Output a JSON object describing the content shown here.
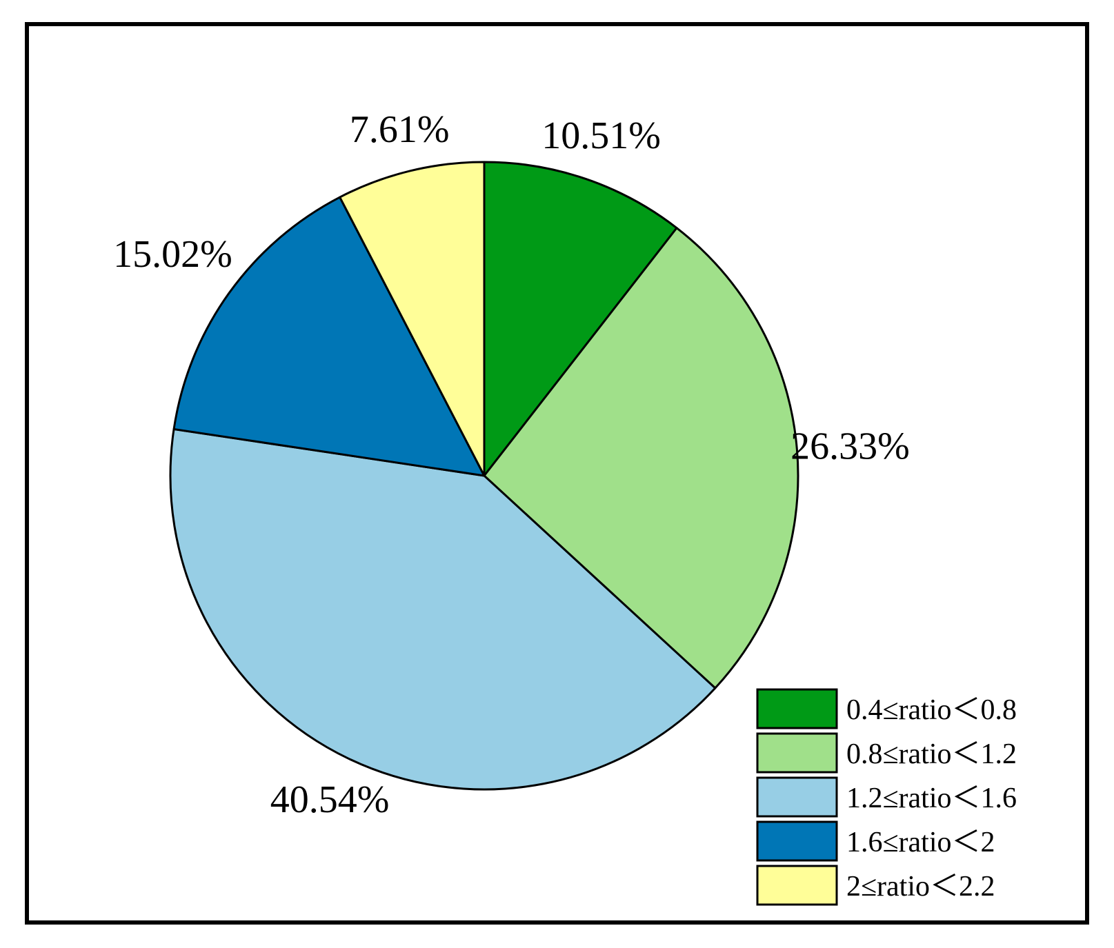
{
  "chart_data": {
    "type": "pie",
    "title": "",
    "slices": [
      {
        "label": "0.4≤ratio＜0.8",
        "value": 10.51,
        "value_label": "10.51%",
        "color": "#009a16"
      },
      {
        "label": "0.8≤ratio＜1.2",
        "value": 26.33,
        "value_label": "26.33%",
        "color": "#a0e08a"
      },
      {
        "label": "1.2≤ratio＜1.6",
        "value": 40.54,
        "value_label": "40.54%",
        "color": "#97cee5"
      },
      {
        "label": "1.6≤ratio＜2",
        "value": 15.02,
        "value_label": "15.02%",
        "color": "#0076b6"
      },
      {
        "label": "2≤ratio＜2.2",
        "value": 7.61,
        "value_label": "7.61%",
        "color": "#fffe98"
      }
    ],
    "start_angle": "12 o'clock",
    "direction": "clockwise",
    "legend_position": "bottom-right",
    "outline_color": "#000000"
  }
}
